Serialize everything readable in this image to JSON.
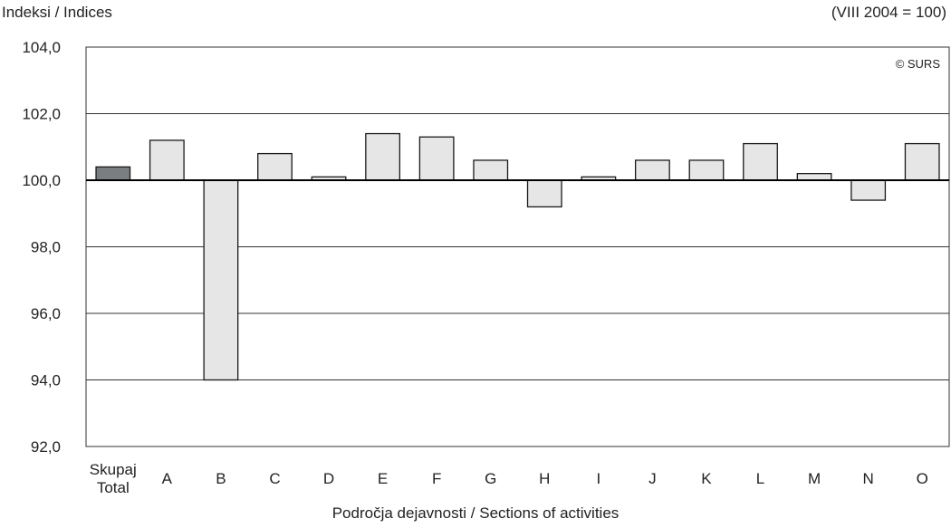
{
  "chart_data": {
    "type": "bar",
    "ylabel": "Indeksi / Indices",
    "base_note": "(VIII 2004 = 100)",
    "xlabel": "Področja dejavnosti / Sections of activities",
    "watermark": "© SURS",
    "baseline": 100,
    "ylim": [
      92,
      104
    ],
    "yticks": [
      "104,0",
      "102,0",
      "100,0",
      "98,0",
      "96,0",
      "94,0",
      "92,0"
    ],
    "categories": [
      "Skupaj\nTotal",
      "A",
      "B",
      "C",
      "D",
      "E",
      "F",
      "G",
      "H",
      "I",
      "J",
      "K",
      "L",
      "M",
      "N",
      "O"
    ],
    "values": [
      100.4,
      101.2,
      94.0,
      100.8,
      100.1,
      101.4,
      101.3,
      100.6,
      99.2,
      100.1,
      100.6,
      100.6,
      101.1,
      100.2,
      99.4,
      101.1
    ],
    "colors": {
      "total": "#7a7e80",
      "section": "#e6e6e6",
      "edge": "#1a1a1a"
    },
    "grid": true
  }
}
